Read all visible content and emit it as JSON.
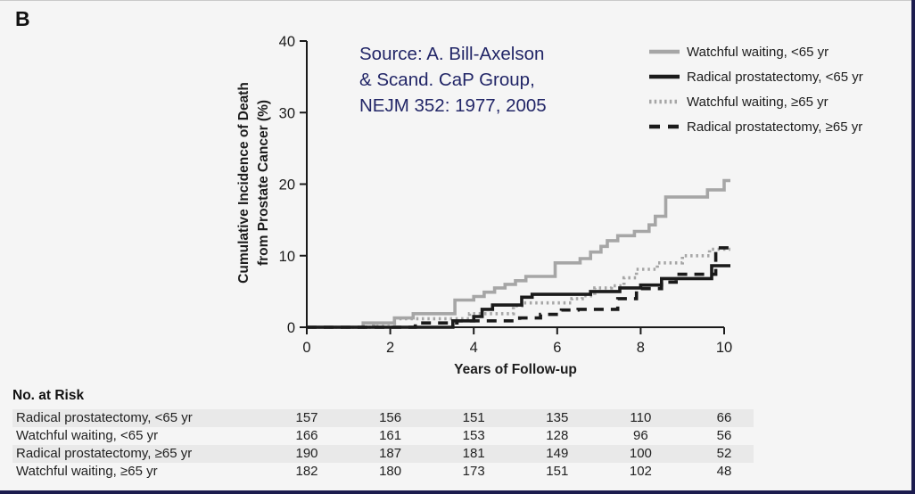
{
  "figure_label": "B",
  "source_note": {
    "lines": [
      "Source: A. Bill-Axelson",
      "& Scand. CaP Group,",
      "NEJM 352: 1977, 2005"
    ],
    "color": "#222667"
  },
  "chart_data": {
    "type": "line",
    "subtype": "step",
    "title": "",
    "xlabel": "Years of Follow-up",
    "ylabel_lines": [
      "Cumulative Incidence of Death",
      "from Prostate Cancer (%)"
    ],
    "xlim": [
      0,
      10.15
    ],
    "ylim": [
      0,
      40
    ],
    "x_ticks": [
      0,
      2,
      4,
      6,
      8,
      10
    ],
    "y_ticks": [
      0,
      10,
      20,
      30,
      40
    ],
    "grid": false,
    "legend_position": "top-right",
    "axis_color": "#1a1a1a",
    "series": [
      {
        "name": "Watchful waiting, <65 yr",
        "color": "#a6a6a6",
        "dash": "solid",
        "points": [
          [
            0,
            0
          ],
          [
            1.35,
            0.6
          ],
          [
            2.1,
            1.3
          ],
          [
            2.55,
            1.9
          ],
          [
            3.55,
            3.8
          ],
          [
            4.0,
            4.3
          ],
          [
            4.25,
            4.9
          ],
          [
            4.5,
            5.5
          ],
          [
            4.75,
            6.0
          ],
          [
            5.0,
            6.5
          ],
          [
            5.25,
            7.1
          ],
          [
            5.95,
            9.0
          ],
          [
            6.55,
            9.6
          ],
          [
            6.8,
            10.5
          ],
          [
            7.05,
            11.3
          ],
          [
            7.2,
            12.1
          ],
          [
            7.45,
            12.8
          ],
          [
            7.85,
            13.4
          ],
          [
            8.2,
            14.3
          ],
          [
            8.35,
            15.5
          ],
          [
            8.6,
            18.2
          ],
          [
            9.6,
            19.2
          ],
          [
            10.0,
            20.5
          ]
        ]
      },
      {
        "name": "Radical prostatectomy, <65 yr",
        "color": "#1a1a1a",
        "dash": "solid",
        "points": [
          [
            0,
            0
          ],
          [
            3.5,
            0.9
          ],
          [
            4.0,
            1.5
          ],
          [
            4.2,
            2.5
          ],
          [
            4.45,
            3.1
          ],
          [
            5.15,
            4.2
          ],
          [
            5.4,
            4.6
          ],
          [
            6.8,
            5.0
          ],
          [
            7.5,
            5.5
          ],
          [
            8.0,
            5.9
          ],
          [
            8.5,
            6.8
          ],
          [
            9.7,
            8.6
          ]
        ]
      },
      {
        "name": "Watchful waiting, ≥65 yr",
        "color": "#a6a6a6",
        "dash": "dotted",
        "points": [
          [
            0,
            0
          ],
          [
            1.6,
            0.5
          ],
          [
            2.1,
            1.2
          ],
          [
            3.9,
            1.9
          ],
          [
            4.95,
            3.0
          ],
          [
            5.2,
            3.4
          ],
          [
            6.35,
            4.0
          ],
          [
            6.6,
            4.4
          ],
          [
            6.9,
            5.5
          ],
          [
            7.3,
            5.8
          ],
          [
            7.6,
            6.9
          ],
          [
            7.9,
            8.1
          ],
          [
            8.4,
            9.0
          ],
          [
            9.0,
            10.0
          ],
          [
            9.65,
            10.9
          ]
        ]
      },
      {
        "name": "Radical prostatectomy, ≥65 yr",
        "color": "#1a1a1a",
        "dash": "dashed",
        "points": [
          [
            0,
            0
          ],
          [
            2.6,
            0.6
          ],
          [
            3.6,
            0.9
          ],
          [
            5.1,
            1.3
          ],
          [
            5.6,
            1.8
          ],
          [
            6.1,
            2.4
          ],
          [
            6.5,
            2.5
          ],
          [
            7.45,
            4.0
          ],
          [
            7.9,
            5.4
          ],
          [
            8.5,
            6.3
          ],
          [
            8.85,
            7.4
          ],
          [
            9.8,
            11.1
          ]
        ]
      }
    ]
  },
  "risk_table": {
    "title": "No. at Risk",
    "years": [
      0,
      2,
      4,
      6,
      8,
      10
    ],
    "rows": [
      {
        "label": "Radical prostatectomy, <65 yr",
        "values": [
          "157",
          "156",
          "151",
          "135",
          "110",
          "66"
        ],
        "shaded": true
      },
      {
        "label": "Watchful waiting, <65 yr",
        "values": [
          "166",
          "161",
          "153",
          "128",
          "96",
          "56"
        ],
        "shaded": false
      },
      {
        "label": "Radical prostatectomy, ≥65 yr",
        "values": [
          "190",
          "187",
          "181",
          "149",
          "100",
          "52"
        ],
        "shaded": true
      },
      {
        "label": "Watchful waiting, ≥65 yr",
        "values": [
          "182",
          "180",
          "173",
          "151",
          "102",
          "48"
        ],
        "shaded": false
      }
    ]
  },
  "colors": {
    "background": "#f5f5f5",
    "frame": "#1c1c4e",
    "gray_line": "#a6a6a6",
    "black_line": "#1a1a1a",
    "source_text": "#222667",
    "row_shade": "#e9e9e9"
  }
}
